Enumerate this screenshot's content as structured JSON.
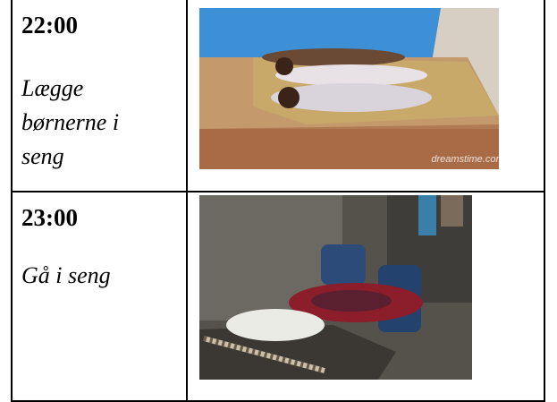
{
  "table": {
    "rows": [
      {
        "time": "22:00",
        "activity": [
          "Lægge",
          "børnerne i",
          "seng"
        ],
        "watermark": "dreamstime.com"
      },
      {
        "time": "23:00",
        "activity": [
          "Gå i seng"
        ]
      }
    ]
  }
}
